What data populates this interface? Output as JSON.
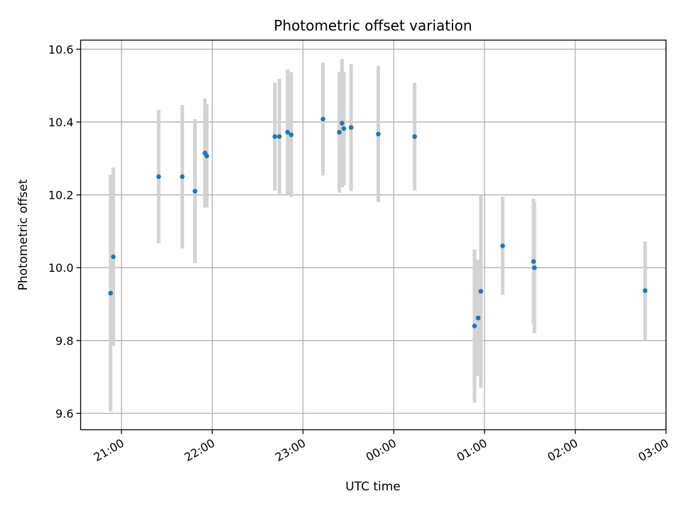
{
  "chart_data": {
    "type": "scatter",
    "title": "Photometric offset variation",
    "xlabel": "UTC time",
    "ylabel": "Photometric offset",
    "x_unit": "UTC time of day (hours, values past 24 continue into next day)",
    "xlim": [
      20.55,
      27.0
    ],
    "ylim": [
      9.555,
      10.625
    ],
    "grid": true,
    "colors": {
      "point": "#1f77b4",
      "errorbar": "#d3d3d3",
      "grid": "#b0b0b0"
    },
    "x_ticks": [
      {
        "value": 21,
        "label": "21:00"
      },
      {
        "value": 22,
        "label": "22:00"
      },
      {
        "value": 23,
        "label": "23:00"
      },
      {
        "value": 24,
        "label": "00:00"
      },
      {
        "value": 25,
        "label": "01:00"
      },
      {
        "value": 26,
        "label": "02:00"
      },
      {
        "value": 27,
        "label": "03:00"
      }
    ],
    "y_ticks": [
      {
        "value": 9.6,
        "label": "9.6"
      },
      {
        "value": 9.8,
        "label": "9.8"
      },
      {
        "value": 10.0,
        "label": "10.0"
      },
      {
        "value": 10.2,
        "label": "10.2"
      },
      {
        "value": 10.4,
        "label": "10.4"
      },
      {
        "value": 10.6,
        "label": "10.6"
      }
    ],
    "points": [
      {
        "x": 20.88,
        "y": 9.93,
        "err": 0.325
      },
      {
        "x": 20.91,
        "y": 10.03,
        "err": 0.245
      },
      {
        "x": 21.41,
        "y": 10.25,
        "err": 0.183
      },
      {
        "x": 21.67,
        "y": 10.25,
        "err": 0.197
      },
      {
        "x": 21.81,
        "y": 10.21,
        "err": 0.198
      },
      {
        "x": 21.92,
        "y": 10.315,
        "err": 0.15
      },
      {
        "x": 21.94,
        "y": 10.307,
        "err": 0.142
      },
      {
        "x": 22.69,
        "y": 10.36,
        "err": 0.148
      },
      {
        "x": 22.74,
        "y": 10.36,
        "err": 0.158
      },
      {
        "x": 22.83,
        "y": 10.372,
        "err": 0.172
      },
      {
        "x": 22.87,
        "y": 10.365,
        "err": 0.172
      },
      {
        "x": 23.22,
        "y": 10.408,
        "err": 0.155
      },
      {
        "x": 23.4,
        "y": 10.372,
        "err": 0.166
      },
      {
        "x": 23.43,
        "y": 10.397,
        "err": 0.176
      },
      {
        "x": 23.45,
        "y": 10.382,
        "err": 0.156
      },
      {
        "x": 23.53,
        "y": 10.385,
        "err": 0.175
      },
      {
        "x": 23.83,
        "y": 10.367,
        "err": 0.187
      },
      {
        "x": 24.23,
        "y": 10.36,
        "err": 0.148
      },
      {
        "x": 24.89,
        "y": 9.84,
        "err": 0.21
      },
      {
        "x": 24.93,
        "y": 9.862,
        "err": 0.16
      },
      {
        "x": 24.96,
        "y": 9.935,
        "err": 0.265
      },
      {
        "x": 25.2,
        "y": 10.06,
        "err": 0.135
      },
      {
        "x": 25.54,
        "y": 10.017,
        "err": 0.172
      },
      {
        "x": 25.55,
        "y": 10.0,
        "err": 0.18
      },
      {
        "x": 26.77,
        "y": 9.937,
        "err": 0.135
      }
    ]
  }
}
